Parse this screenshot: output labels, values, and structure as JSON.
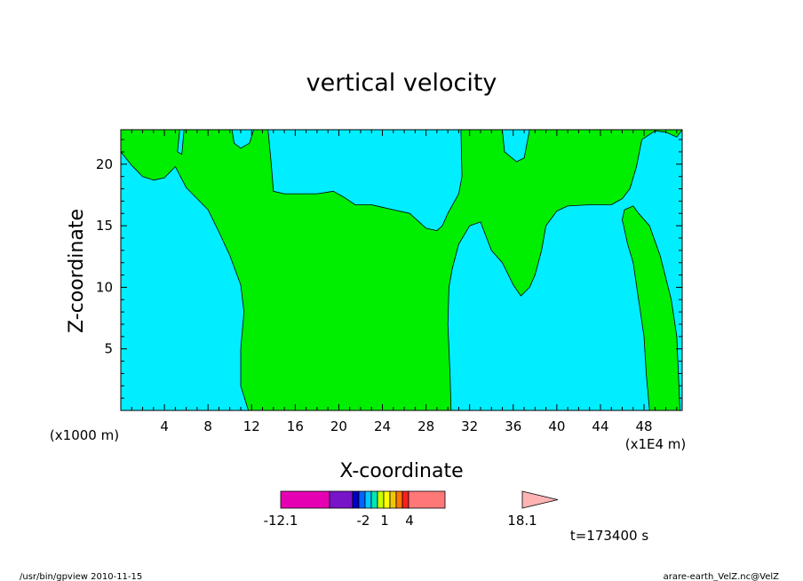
{
  "title": "vertical velocity",
  "x_axis": {
    "label": "X-coordinate",
    "unit_left": "(x1000 m)",
    "unit_right": "(x1E4 m)",
    "ticks": [
      "4",
      "8",
      "12",
      "16",
      "20",
      "24",
      "28",
      "32",
      "36",
      "40",
      "44",
      "48"
    ],
    "range": [
      0,
      51.5
    ]
  },
  "y_axis": {
    "label": "Z-coordinate",
    "ticks": [
      "5",
      "10",
      "15",
      "20"
    ],
    "range": [
      0,
      22.8
    ]
  },
  "colors": {
    "positive_region": "#00ee00",
    "negative_region": "#00eeff"
  },
  "colorbar": {
    "labels": [
      "-12.1",
      "-2",
      "1",
      "4",
      "18.1"
    ],
    "colors": [
      "#e600b4",
      "#7814c8",
      "#0000c8",
      "#0064ff",
      "#00c8ff",
      "#00e6b4",
      "#c8ff00",
      "#ffff00",
      "#f0c800",
      "#ff7800",
      "#ff1e1e",
      "#ff7878",
      "#ffb4b4"
    ]
  },
  "time_label": "t=173400 s",
  "footer": {
    "left": "/usr/bin/gpview  2010-11-15",
    "right": "arare-earth_VelZ.nc@VelZ"
  },
  "chart_data": {
    "type": "heatmap",
    "title": "vertical velocity",
    "xlabel": "X-coordinate",
    "ylabel": "Z-coordinate",
    "xlim": [
      0,
      51.5
    ],
    "ylim": [
      0,
      22.8
    ],
    "x_tick_labels": [
      "4",
      "8",
      "12",
      "16",
      "20",
      "24",
      "28",
      "32",
      "36",
      "40",
      "44",
      "48"
    ],
    "y_tick_labels": [
      "5",
      "10",
      "15",
      "20"
    ],
    "colorbar_labels": [
      "-12.1",
      "-2",
      "1",
      "4",
      "18.1"
    ],
    "regions": [
      {
        "name": "positive",
        "color": "#00ee00",
        "polygon": [
          [
            0,
            22.8
          ],
          [
            0,
            21
          ],
          [
            1,
            19.9
          ],
          [
            2,
            19
          ],
          [
            3,
            18.7
          ],
          [
            4,
            18.9
          ],
          [
            5,
            19.8
          ],
          [
            6,
            18.1
          ],
          [
            7,
            17.2
          ],
          [
            8,
            16.3
          ],
          [
            9,
            14.5
          ],
          [
            10,
            12.6
          ],
          [
            11,
            10.2
          ],
          [
            11.3,
            8
          ],
          [
            11,
            5
          ],
          [
            11,
            2
          ],
          [
            11.7,
            0
          ],
          [
            30.3,
            0
          ],
          [
            30.2,
            3
          ],
          [
            30,
            7
          ],
          [
            30.1,
            10
          ],
          [
            30.4,
            11.5
          ],
          [
            31,
            13.5
          ],
          [
            32,
            15
          ],
          [
            33,
            15.3
          ],
          [
            34,
            13
          ],
          [
            35,
            12
          ],
          [
            36,
            10.2
          ],
          [
            36.7,
            9.3
          ],
          [
            37.5,
            10
          ],
          [
            38,
            11
          ],
          [
            38.6,
            13
          ],
          [
            39,
            15
          ],
          [
            40,
            16.2
          ],
          [
            41,
            16.6
          ],
          [
            43,
            16.7
          ],
          [
            45,
            16.7
          ],
          [
            46,
            17.2
          ],
          [
            46.7,
            18
          ],
          [
            47.3,
            19.8
          ],
          [
            47.8,
            22
          ],
          [
            49,
            22.7
          ],
          [
            50,
            22.6
          ],
          [
            51,
            22.2
          ],
          [
            51.5,
            22.8
          ]
        ]
      },
      {
        "name": "negative",
        "color": "#00eeff",
        "polygon": [
          [
            5.4,
            22.8
          ],
          [
            5.2,
            21
          ],
          [
            5.6,
            20.8
          ],
          [
            5.8,
            22.8
          ]
        ]
      },
      {
        "name": "negative",
        "color": "#00eeff",
        "polygon": [
          [
            10.2,
            22.8
          ],
          [
            10.4,
            21.7
          ],
          [
            11,
            21.3
          ],
          [
            11.8,
            21.7
          ],
          [
            12.2,
            22.8
          ]
        ]
      },
      {
        "name": "negative",
        "color": "#00eeff",
        "polygon": [
          [
            13.5,
            22.8
          ],
          [
            13.8,
            20
          ],
          [
            14,
            17.8
          ],
          [
            15,
            17.6
          ],
          [
            18,
            17.6
          ],
          [
            19.5,
            17.8
          ],
          [
            20.5,
            17.3
          ],
          [
            21.5,
            16.7
          ],
          [
            23,
            16.7
          ],
          [
            24,
            16.5
          ],
          [
            25,
            16.3
          ],
          [
            26.5,
            16
          ],
          [
            28,
            14.8
          ],
          [
            29,
            14.6
          ],
          [
            29.5,
            15
          ],
          [
            30,
            16
          ],
          [
            31,
            17.6
          ],
          [
            31.3,
            19
          ],
          [
            31.2,
            22.8
          ]
        ]
      },
      {
        "name": "negative",
        "color": "#00eeff",
        "polygon": [
          [
            35,
            22.8
          ],
          [
            35.2,
            21
          ],
          [
            36.3,
            20.2
          ],
          [
            37,
            20.5
          ],
          [
            37.5,
            22.8
          ]
        ]
      },
      {
        "name": "positive",
        "color": "#00ee00",
        "polygon": [
          [
            46,
            15.5
          ],
          [
            46.2,
            16.3
          ],
          [
            47,
            16.6
          ],
          [
            47.5,
            16
          ],
          [
            48.5,
            15
          ],
          [
            49.5,
            12.5
          ],
          [
            50.5,
            9
          ],
          [
            51,
            6
          ],
          [
            51.2,
            2
          ],
          [
            51.3,
            0
          ],
          [
            48.5,
            0
          ],
          [
            48.2,
            3
          ],
          [
            48,
            6
          ],
          [
            47.5,
            9
          ],
          [
            47,
            12
          ],
          [
            46.5,
            13.5
          ]
        ]
      }
    ]
  }
}
